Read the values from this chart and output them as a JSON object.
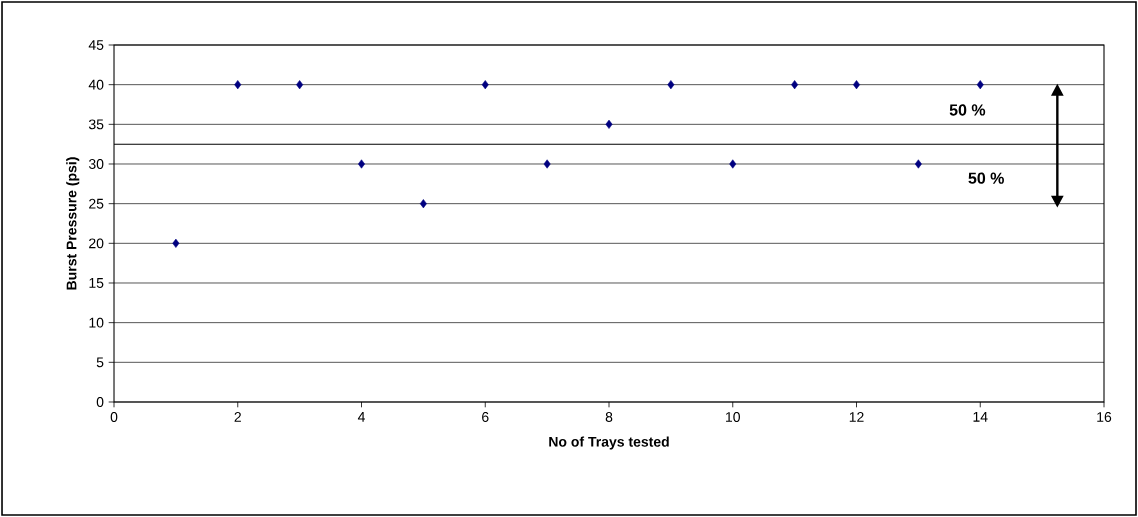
{
  "chart_data": {
    "type": "scatter",
    "xlabel": "No of Trays tested",
    "ylabel": "Burst Pressure (psi)",
    "x": [
      1,
      2,
      3,
      4,
      5,
      6,
      7,
      8,
      9,
      10,
      11,
      12,
      13,
      14
    ],
    "values": [
      20,
      40,
      40,
      30,
      25,
      40,
      30,
      35,
      40,
      30,
      40,
      40,
      30,
      40
    ],
    "color": "#000080",
    "marker": "diamond",
    "xlim": [
      0,
      16
    ],
    "xticks": [
      0,
      2,
      4,
      6,
      8,
      10,
      12,
      14,
      16
    ],
    "ylim": [
      0,
      45
    ],
    "yticks": [
      0,
      5,
      10,
      15,
      20,
      25,
      30,
      35,
      40,
      45
    ],
    "grid": "y",
    "ref_lines": [
      {
        "axis": "y",
        "value": 32.5,
        "color": "#000000"
      }
    ],
    "annotations": [
      "50 %",
      "50 %"
    ]
  }
}
